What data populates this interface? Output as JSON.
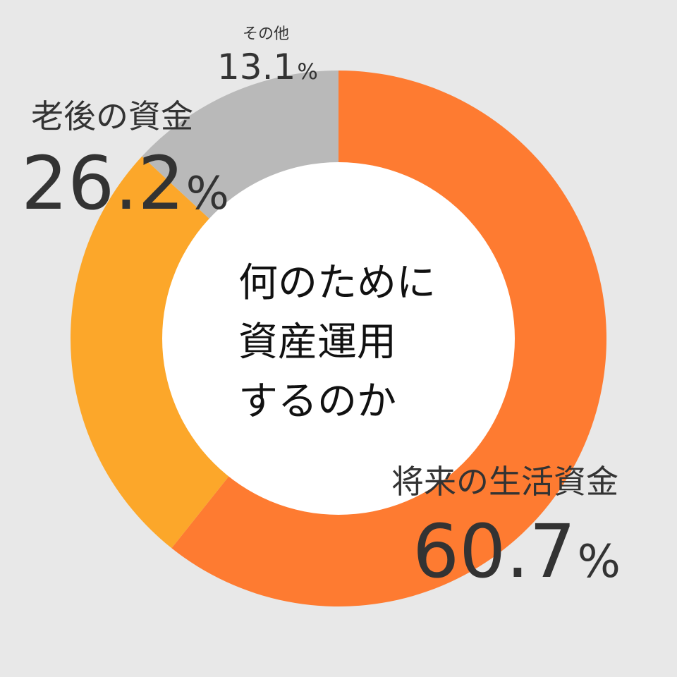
{
  "center_title": {
    "line1": "何のために",
    "line2": "資産運用",
    "line3": "するのか"
  },
  "labels": [
    {
      "name": "将来の生活資金",
      "value": "60.7",
      "unit": "%"
    },
    {
      "name": "老後の資金",
      "value": "26.2",
      "unit": "%"
    },
    {
      "name": "その他",
      "value": "13.1",
      "unit": "%"
    }
  ],
  "chart_data": {
    "type": "pie",
    "variant": "donut",
    "title": "何のために資産運用するのか",
    "unit": "%",
    "categories": [
      "将来の生活資金",
      "老後の資金",
      "その他"
    ],
    "values": [
      60.7,
      26.2,
      13.1
    ],
    "colors": [
      "#fe7b31",
      "#fca72a",
      "#b9b9b9"
    ],
    "start_angle": "12 o'clock",
    "direction": "clockwise",
    "legend": "none (labels placed beside slices)"
  },
  "colors": {
    "background": "#e8e8e8",
    "hole": "#ffffff",
    "text": "#333333"
  }
}
